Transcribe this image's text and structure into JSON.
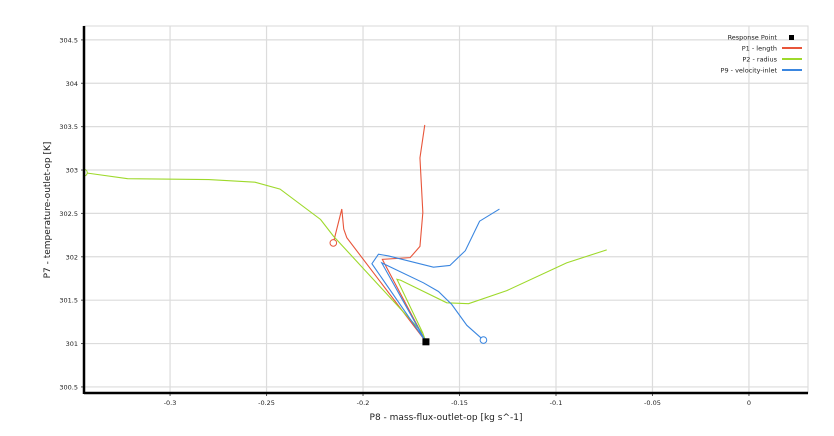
{
  "chart_data": {
    "type": "line",
    "xlabel": "P8 - mass-flux-outlet-op  [kg s^-1]",
    "ylabel": "P7 - temperature-outlet-op  [K]",
    "xlim": [
      -0.3446,
      0.0306
    ],
    "ylim": [
      300.43,
      304.66
    ],
    "xticks": [
      -0.3,
      -0.25,
      -0.2,
      -0.15,
      -0.1,
      -0.05,
      0
    ],
    "xtick_labels": [
      "-0.3",
      "-0.25",
      "-0.2",
      "-0.15",
      "-0.1",
      "-0.05",
      "0"
    ],
    "yticks": [
      300.5,
      301,
      301.5,
      302,
      302.5,
      303,
      303.5,
      304,
      304.5
    ],
    "ytick_labels": [
      "300.5",
      "301",
      "301.5",
      "302",
      "302.5",
      "303",
      "303.5",
      "304",
      "304.5"
    ],
    "grid": true,
    "legend_placement": "top-right",
    "response_point": {
      "name": "Response Point",
      "x": -0.1674,
      "y": 301.02,
      "color": "#000000"
    },
    "series": [
      {
        "name": "P1 - length",
        "color": "#e8553a",
        "start_marker": "circle",
        "points": [
          [
            -0.2154,
            302.16
          ],
          [
            -0.211,
            302.55
          ],
          [
            -0.21,
            302.32
          ],
          [
            -0.2084,
            302.22
          ],
          [
            -0.1674,
            301.02
          ],
          [
            -0.19,
            301.97
          ],
          [
            -0.1756,
            301.99
          ],
          [
            -0.1705,
            302.12
          ],
          [
            -0.169,
            302.51
          ],
          [
            -0.1705,
            303.14
          ],
          [
            -0.168,
            303.52
          ]
        ]
      },
      {
        "name": "P2 - radius",
        "color": "#9ed92b",
        "start_marker": "circle",
        "points": [
          [
            -0.3446,
            302.97
          ],
          [
            -0.322,
            302.9
          ],
          [
            -0.28,
            302.89
          ],
          [
            -0.256,
            302.86
          ],
          [
            -0.243,
            302.78
          ],
          [
            -0.222,
            302.43
          ],
          [
            -0.2154,
            302.24
          ],
          [
            -0.169,
            301.12
          ],
          [
            -0.1674,
            301.02
          ],
          [
            -0.169,
            301.12
          ],
          [
            -0.1824,
            301.74
          ],
          [
            -0.1805,
            301.73
          ],
          [
            -0.1566,
            301.47
          ],
          [
            -0.1453,
            301.46
          ],
          [
            -0.1255,
            301.61
          ],
          [
            -0.0945,
            301.93
          ],
          [
            -0.0737,
            302.08
          ]
        ]
      },
      {
        "name": "P9 - velocity-inlet",
        "color": "#3a86e0",
        "start_marker": "circle",
        "points": [
          [
            -0.1376,
            301.04
          ],
          [
            -0.1462,
            301.21
          ],
          [
            -0.154,
            301.45
          ],
          [
            -0.1609,
            301.6
          ],
          [
            -0.1687,
            301.7
          ],
          [
            -0.1903,
            301.93
          ],
          [
            -0.1674,
            301.02
          ],
          [
            -0.1954,
            301.92
          ],
          [
            -0.192,
            302.03
          ],
          [
            -0.1868,
            302.01
          ],
          [
            -0.1635,
            301.88
          ],
          [
            -0.155,
            301.9
          ],
          [
            -0.147,
            302.07
          ],
          [
            -0.1396,
            302.41
          ],
          [
            -0.1293,
            302.55
          ]
        ]
      }
    ]
  }
}
